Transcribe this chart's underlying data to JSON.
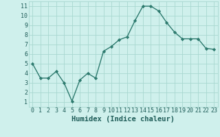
{
  "x": [
    0,
    1,
    2,
    3,
    4,
    5,
    6,
    7,
    8,
    9,
    10,
    11,
    12,
    13,
    14,
    15,
    16,
    17,
    18,
    19,
    20,
    21,
    22,
    23
  ],
  "y": [
    5.0,
    3.5,
    3.5,
    4.2,
    3.0,
    1.1,
    3.3,
    4.0,
    3.5,
    6.3,
    6.8,
    7.5,
    7.8,
    9.5,
    11.0,
    11.0,
    10.5,
    9.3,
    8.3,
    7.6,
    7.6,
    7.6,
    6.6,
    6.5
  ],
  "line_color": "#2d7a6e",
  "marker": "D",
  "marker_size": 2.2,
  "bg_color": "#cff0ec",
  "grid_color": "#a8d8d0",
  "xlabel": "Humidex (Indice chaleur)",
  "xlabel_fontsize": 7.5,
  "xlim": [
    -0.5,
    23.5
  ],
  "ylim": [
    0.5,
    11.5
  ],
  "yticks": [
    1,
    2,
    3,
    4,
    5,
    6,
    7,
    8,
    9,
    10,
    11
  ],
  "xticks": [
    0,
    1,
    2,
    3,
    4,
    5,
    6,
    7,
    8,
    9,
    10,
    11,
    12,
    13,
    14,
    15,
    16,
    17,
    18,
    19,
    20,
    21,
    22,
    23
  ],
  "tick_fontsize": 6.0,
  "axis_color": "#1e5c58",
  "linewidth": 1.0
}
